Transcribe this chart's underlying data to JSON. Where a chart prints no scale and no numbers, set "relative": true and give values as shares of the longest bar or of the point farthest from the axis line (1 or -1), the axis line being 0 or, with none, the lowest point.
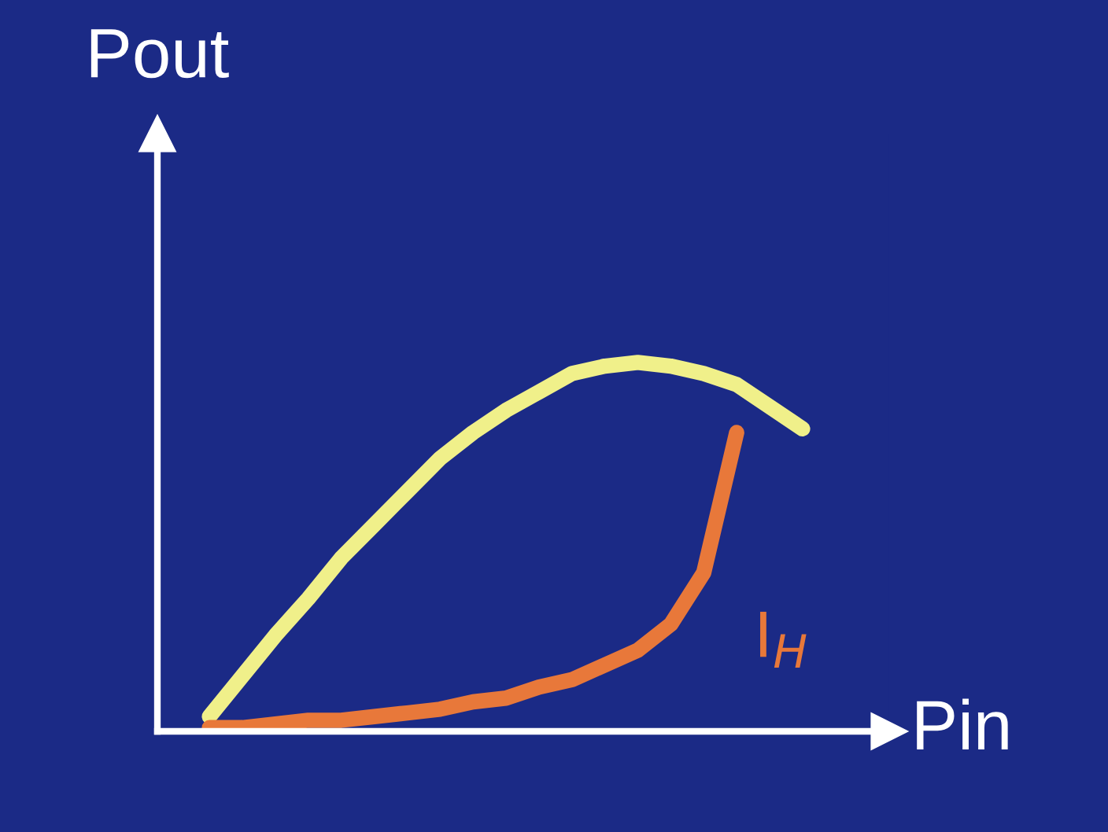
{
  "chart_data": {
    "type": "line",
    "relative": true,
    "xlabel": "Pin",
    "ylabel": "Pout",
    "categories": [
      null,
      null,
      null,
      null,
      null,
      null,
      null,
      null,
      null,
      null,
      null,
      null,
      null,
      null,
      null,
      null,
      null,
      null,
      null
    ],
    "series": [
      {
        "color": "#f0f08a",
        "values": [
          0.04,
          0.15,
          0.26,
          0.36,
          0.47,
          0.56,
          0.65,
          0.74,
          0.81,
          0.87,
          0.92,
          0.97,
          0.99,
          1.0,
          0.99,
          0.97,
          0.94,
          0.88,
          0.82
        ]
      },
      {
        "name": "I$_{H}$",
        "color": "#e8783a",
        "values": [
          0.01,
          0.01,
          0.02,
          0.03,
          0.03,
          0.04,
          0.05,
          0.06,
          0.08,
          0.09,
          0.12,
          0.14,
          0.18,
          0.22,
          0.29,
          0.43,
          0.81,
          null,
          null
        ]
      }
    ],
    "grid": false,
    "legend": false,
    "marker": "none",
    "line_style": "solid"
  }
}
